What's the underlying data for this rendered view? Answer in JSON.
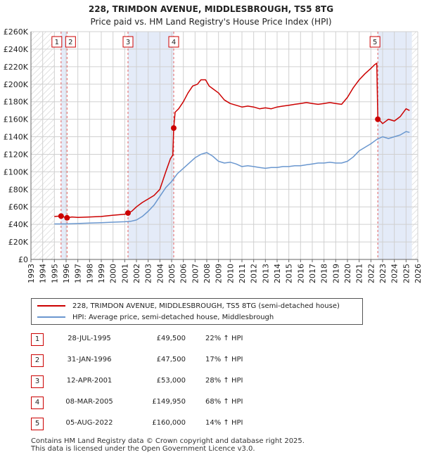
{
  "title": "228, TRIMDON AVENUE, MIDDLESBROUGH, TS5 8TG",
  "subtitle": "Price paid vs. HM Land Registry's House Price Index (HPI)",
  "colors": {
    "property": "#cc0000",
    "hpi": "#6a97cf",
    "shade": "#dbe4f5",
    "grid": "#d0d0d0",
    "marker_line": "#e06060"
  },
  "legend": {
    "property_label": "228, TRIMDON AVENUE, MIDDLESBROUGH, TS5 8TG (semi-detached house)",
    "hpi_label": "HPI: Average price, semi-detached house, Middlesbrough"
  },
  "sales": [
    {
      "num": "1",
      "date": "28-JUL-1995",
      "price": "£49,500",
      "hpi": "22% ↑ HPI"
    },
    {
      "num": "2",
      "date": "31-JAN-1996",
      "price": "£47,500",
      "hpi": "17% ↑ HPI"
    },
    {
      "num": "3",
      "date": "12-APR-2001",
      "price": "£53,000",
      "hpi": "28% ↑ HPI"
    },
    {
      "num": "4",
      "date": "08-MAR-2005",
      "price": "£149,950",
      "hpi": "68% ↑ HPI"
    },
    {
      "num": "5",
      "date": "05-AUG-2022",
      "price": "£160,000",
      "hpi": "14% ↑ HPI"
    }
  ],
  "footer": {
    "line1": "Contains HM Land Registry data © Crown copyright and database right 2025.",
    "line2": "This data is licensed under the Open Government Licence v3.0."
  },
  "chart_data": {
    "type": "line",
    "xlim": [
      1993,
      2026
    ],
    "ylim": [
      0,
      260000
    ],
    "y_ticks": [
      0,
      20000,
      40000,
      60000,
      80000,
      100000,
      120000,
      140000,
      160000,
      180000,
      200000,
      220000,
      240000,
      260000
    ],
    "y_tick_labels": [
      "£0",
      "£20K",
      "£40K",
      "£60K",
      "£80K",
      "£100K",
      "£120K",
      "£140K",
      "£160K",
      "£180K",
      "£200K",
      "£220K",
      "£240K",
      "£260K"
    ],
    "x_ticks": [
      1993,
      1994,
      1995,
      1996,
      1997,
      1998,
      1999,
      2000,
      2001,
      2002,
      2003,
      2004,
      2005,
      2006,
      2007,
      2008,
      2009,
      2010,
      2011,
      2012,
      2013,
      2014,
      2015,
      2016,
      2017,
      2018,
      2019,
      2020,
      2021,
      2022,
      2023,
      2024,
      2025,
      2026
    ],
    "x_tick_labels": [
      "1993",
      "1994",
      "1995",
      "1996",
      "1997",
      "1998",
      "1999",
      "2000",
      "2001",
      "2002",
      "2003",
      "2004",
      "2005",
      "2006",
      "2007",
      "2008",
      "2009",
      "2010",
      "2011",
      "2012",
      "2013",
      "2014",
      "2015",
      "2016",
      "2017",
      "2018",
      "2019",
      "2020",
      "2021",
      "2022",
      "2023",
      "2024",
      "2025",
      "2026"
    ],
    "hatch_before": 1995.0,
    "hatch_after": 2025.5,
    "shaded_spans": [
      [
        1995.57,
        1996.08
      ],
      [
        2001.28,
        2005.18
      ],
      [
        2022.59,
        2025.5
      ]
    ],
    "markers": [
      {
        "label": "1",
        "x": 1995.57,
        "y": 49500
      },
      {
        "label": "2",
        "x": 1996.08,
        "y": 47500
      },
      {
        "label": "3",
        "x": 2001.28,
        "y": 53000
      },
      {
        "label": "4",
        "x": 2005.18,
        "y": 149950
      },
      {
        "label": "5",
        "x": 2022.59,
        "y": 160000
      }
    ],
    "series": [
      {
        "name": "228, TRIMDON AVENUE, MIDDLESBROUGH, TS5 8TG (semi-detached house)",
        "x": [
          1995.0,
          1995.57,
          1996.08,
          1996.5,
          1997.0,
          1998.0,
          1999.0,
          2000.0,
          2001.0,
          2001.28,
          2001.6,
          2002.0,
          2002.5,
          2003.0,
          2003.5,
          2004.0,
          2004.5,
          2004.9,
          2005.1,
          2005.18,
          2005.3,
          2005.6,
          2006.0,
          2006.4,
          2006.8,
          2007.2,
          2007.5,
          2007.9,
          2008.2,
          2008.5,
          2009.0,
          2009.5,
          2010.0,
          2010.5,
          2011.0,
          2011.5,
          2012.0,
          2012.5,
          2013.0,
          2013.5,
          2014.0,
          2014.5,
          2015.0,
          2015.5,
          2016.0,
          2016.5,
          2017.0,
          2017.5,
          2018.0,
          2018.5,
          2019.0,
          2019.5,
          2020.0,
          2020.5,
          2021.0,
          2021.5,
          2022.0,
          2022.3,
          2022.5,
          2022.59,
          2022.8,
          2023.0,
          2023.5,
          2024.0,
          2024.5,
          2025.0,
          2025.3
        ],
        "y": [
          49000,
          49500,
          47500,
          48500,
          48000,
          48500,
          49000,
          50500,
          51500,
          53000,
          55000,
          60000,
          65000,
          69000,
          73000,
          80000,
          100000,
          115000,
          119000,
          149950,
          168000,
          172000,
          180000,
          190000,
          198000,
          200000,
          205000,
          205000,
          198000,
          195000,
          190000,
          182000,
          178000,
          176000,
          174000,
          175000,
          174000,
          172000,
          173000,
          172000,
          174000,
          175000,
          176000,
          177000,
          178000,
          179000,
          178000,
          177000,
          178000,
          179000,
          178000,
          177000,
          185000,
          196000,
          205000,
          212000,
          218000,
          222000,
          224000,
          160000,
          158000,
          155000,
          160000,
          158000,
          163000,
          172000,
          170000
        ]
      },
      {
        "name": "HPI: Average price, semi-detached house, Middlesbrough",
        "x": [
          1995.0,
          1996.0,
          1997.0,
          1998.0,
          1999.0,
          2000.0,
          2001.0,
          2001.5,
          2002.0,
          2002.5,
          2003.0,
          2003.5,
          2004.0,
          2004.5,
          2005.0,
          2005.5,
          2006.0,
          2006.5,
          2007.0,
          2007.5,
          2008.0,
          2008.5,
          2009.0,
          2009.5,
          2010.0,
          2010.5,
          2011.0,
          2011.5,
          2012.0,
          2012.5,
          2013.0,
          2013.5,
          2014.0,
          2014.5,
          2015.0,
          2015.5,
          2016.0,
          2016.5,
          2017.0,
          2017.5,
          2018.0,
          2018.5,
          2019.0,
          2019.5,
          2020.0,
          2020.5,
          2021.0,
          2021.5,
          2022.0,
          2022.5,
          2023.0,
          2023.5,
          2024.0,
          2024.5,
          2025.0,
          2025.3
        ],
        "y": [
          40500,
          40500,
          41000,
          41500,
          42000,
          42500,
          43000,
          43500,
          45000,
          49000,
          55000,
          62000,
          72000,
          82000,
          89000,
          98000,
          104000,
          110000,
          116000,
          120000,
          122000,
          118000,
          112000,
          110000,
          111000,
          109000,
          106000,
          107000,
          106000,
          105000,
          104000,
          105000,
          105000,
          106000,
          106000,
          107000,
          107000,
          108000,
          109000,
          110000,
          110000,
          111000,
          110000,
          110000,
          112000,
          117000,
          124000,
          128000,
          132000,
          137000,
          140000,
          138000,
          140000,
          142000,
          146000,
          145000
        ]
      }
    ]
  }
}
